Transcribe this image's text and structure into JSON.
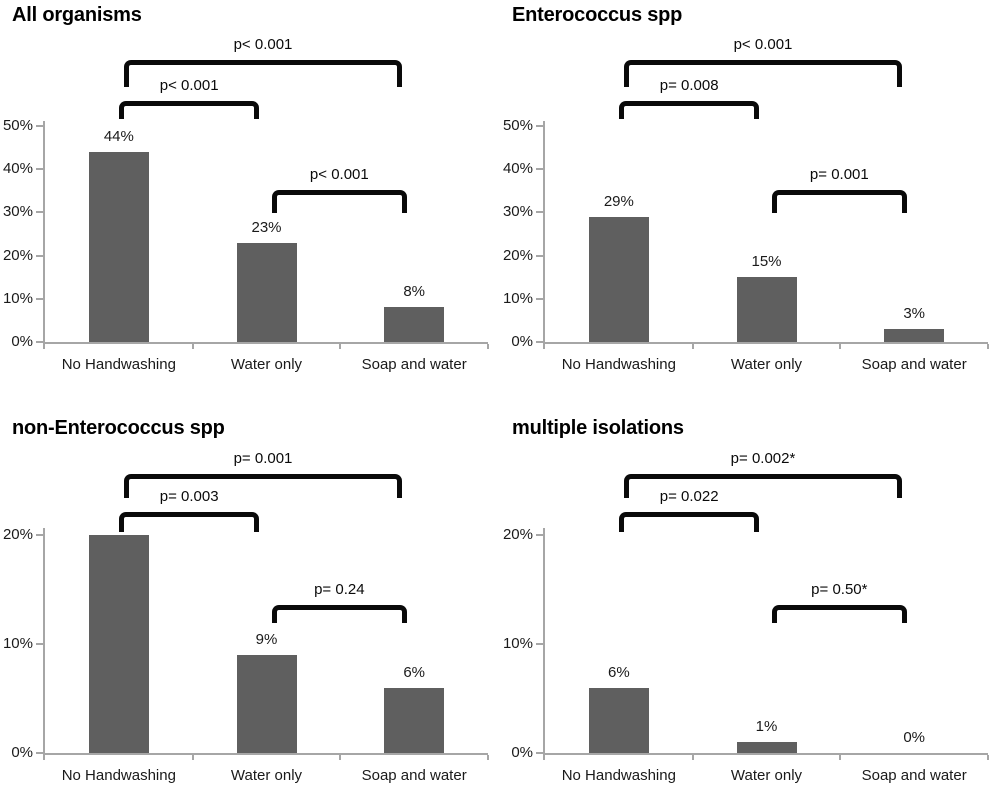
{
  "figure": {
    "background": "#ffffff",
    "bar_color": "#5f5f5f",
    "axis_color": "#a6a6a6",
    "text_color": "#1a1a1a",
    "bracket_color": "#0a0a0a"
  },
  "chart_data": [
    {
      "type": "bar",
      "title": "All organisms",
      "categories": [
        "No Handwashing",
        "Water only",
        "Soap and water"
      ],
      "values": [
        44,
        23,
        8
      ],
      "value_labels": [
        "44%",
        "23%",
        "8%"
      ],
      "xlabel": "",
      "ylabel": "",
      "ylim": [
        0,
        50
      ],
      "yticks": [
        0,
        10,
        20,
        30,
        40,
        50
      ],
      "ytick_labels": [
        "0%",
        "10%",
        "20%",
        "30%",
        "40%",
        "50%"
      ],
      "grid": false,
      "legend": false,
      "comparisons": [
        {
          "from": 0,
          "to": 2,
          "label": "p< 0.001"
        },
        {
          "from": 0,
          "to": 1,
          "label": "p< 0.001"
        },
        {
          "from": 1,
          "to": 2,
          "label": "p< 0.001"
        }
      ]
    },
    {
      "type": "bar",
      "title": "Enterococcus spp",
      "categories": [
        "No Handwashing",
        "Water only",
        "Soap and water"
      ],
      "values": [
        29,
        15,
        3
      ],
      "value_labels": [
        "29%",
        "15%",
        "3%"
      ],
      "xlabel": "",
      "ylabel": "",
      "ylim": [
        0,
        50
      ],
      "yticks": [
        0,
        10,
        20,
        30,
        40,
        50
      ],
      "ytick_labels": [
        "0%",
        "10%",
        "20%",
        "30%",
        "40%",
        "50%"
      ],
      "grid": false,
      "legend": false,
      "comparisons": [
        {
          "from": 0,
          "to": 2,
          "label": "p< 0.001"
        },
        {
          "from": 0,
          "to": 1,
          "label": "p= 0.008"
        },
        {
          "from": 1,
          "to": 2,
          "label": "p= 0.001"
        }
      ]
    },
    {
      "type": "bar",
      "title": "non-Enterococcus spp",
      "categories": [
        "No Handwashing",
        "Water only",
        "Soap and water"
      ],
      "values": [
        20,
        9,
        6
      ],
      "value_labels": [
        "",
        "9%",
        "6%"
      ],
      "xlabel": "",
      "ylabel": "",
      "ylim": [
        0,
        20
      ],
      "yticks": [
        0,
        10,
        20
      ],
      "ytick_labels": [
        "0%",
        "10%",
        "20%"
      ],
      "grid": false,
      "legend": false,
      "comparisons": [
        {
          "from": 0,
          "to": 2,
          "label": "p= 0.001"
        },
        {
          "from": 0,
          "to": 1,
          "label": "p= 0.003"
        },
        {
          "from": 1,
          "to": 2,
          "label": "p= 0.24"
        }
      ]
    },
    {
      "type": "bar",
      "title": "multiple isolations",
      "categories": [
        "No Handwashing",
        "Water only",
        "Soap and water"
      ],
      "values": [
        6,
        1,
        0
      ],
      "value_labels": [
        "6%",
        "1%",
        "0%"
      ],
      "xlabel": "",
      "ylabel": "",
      "ylim": [
        0,
        20
      ],
      "yticks": [
        0,
        10,
        20
      ],
      "ytick_labels": [
        "0%",
        "10%",
        "20%"
      ],
      "grid": false,
      "legend": false,
      "comparisons": [
        {
          "from": 0,
          "to": 2,
          "label": "p= 0.002*"
        },
        {
          "from": 0,
          "to": 1,
          "label": "p= 0.022"
        },
        {
          "from": 1,
          "to": 2,
          "label": "p= 0.50*"
        }
      ]
    }
  ]
}
